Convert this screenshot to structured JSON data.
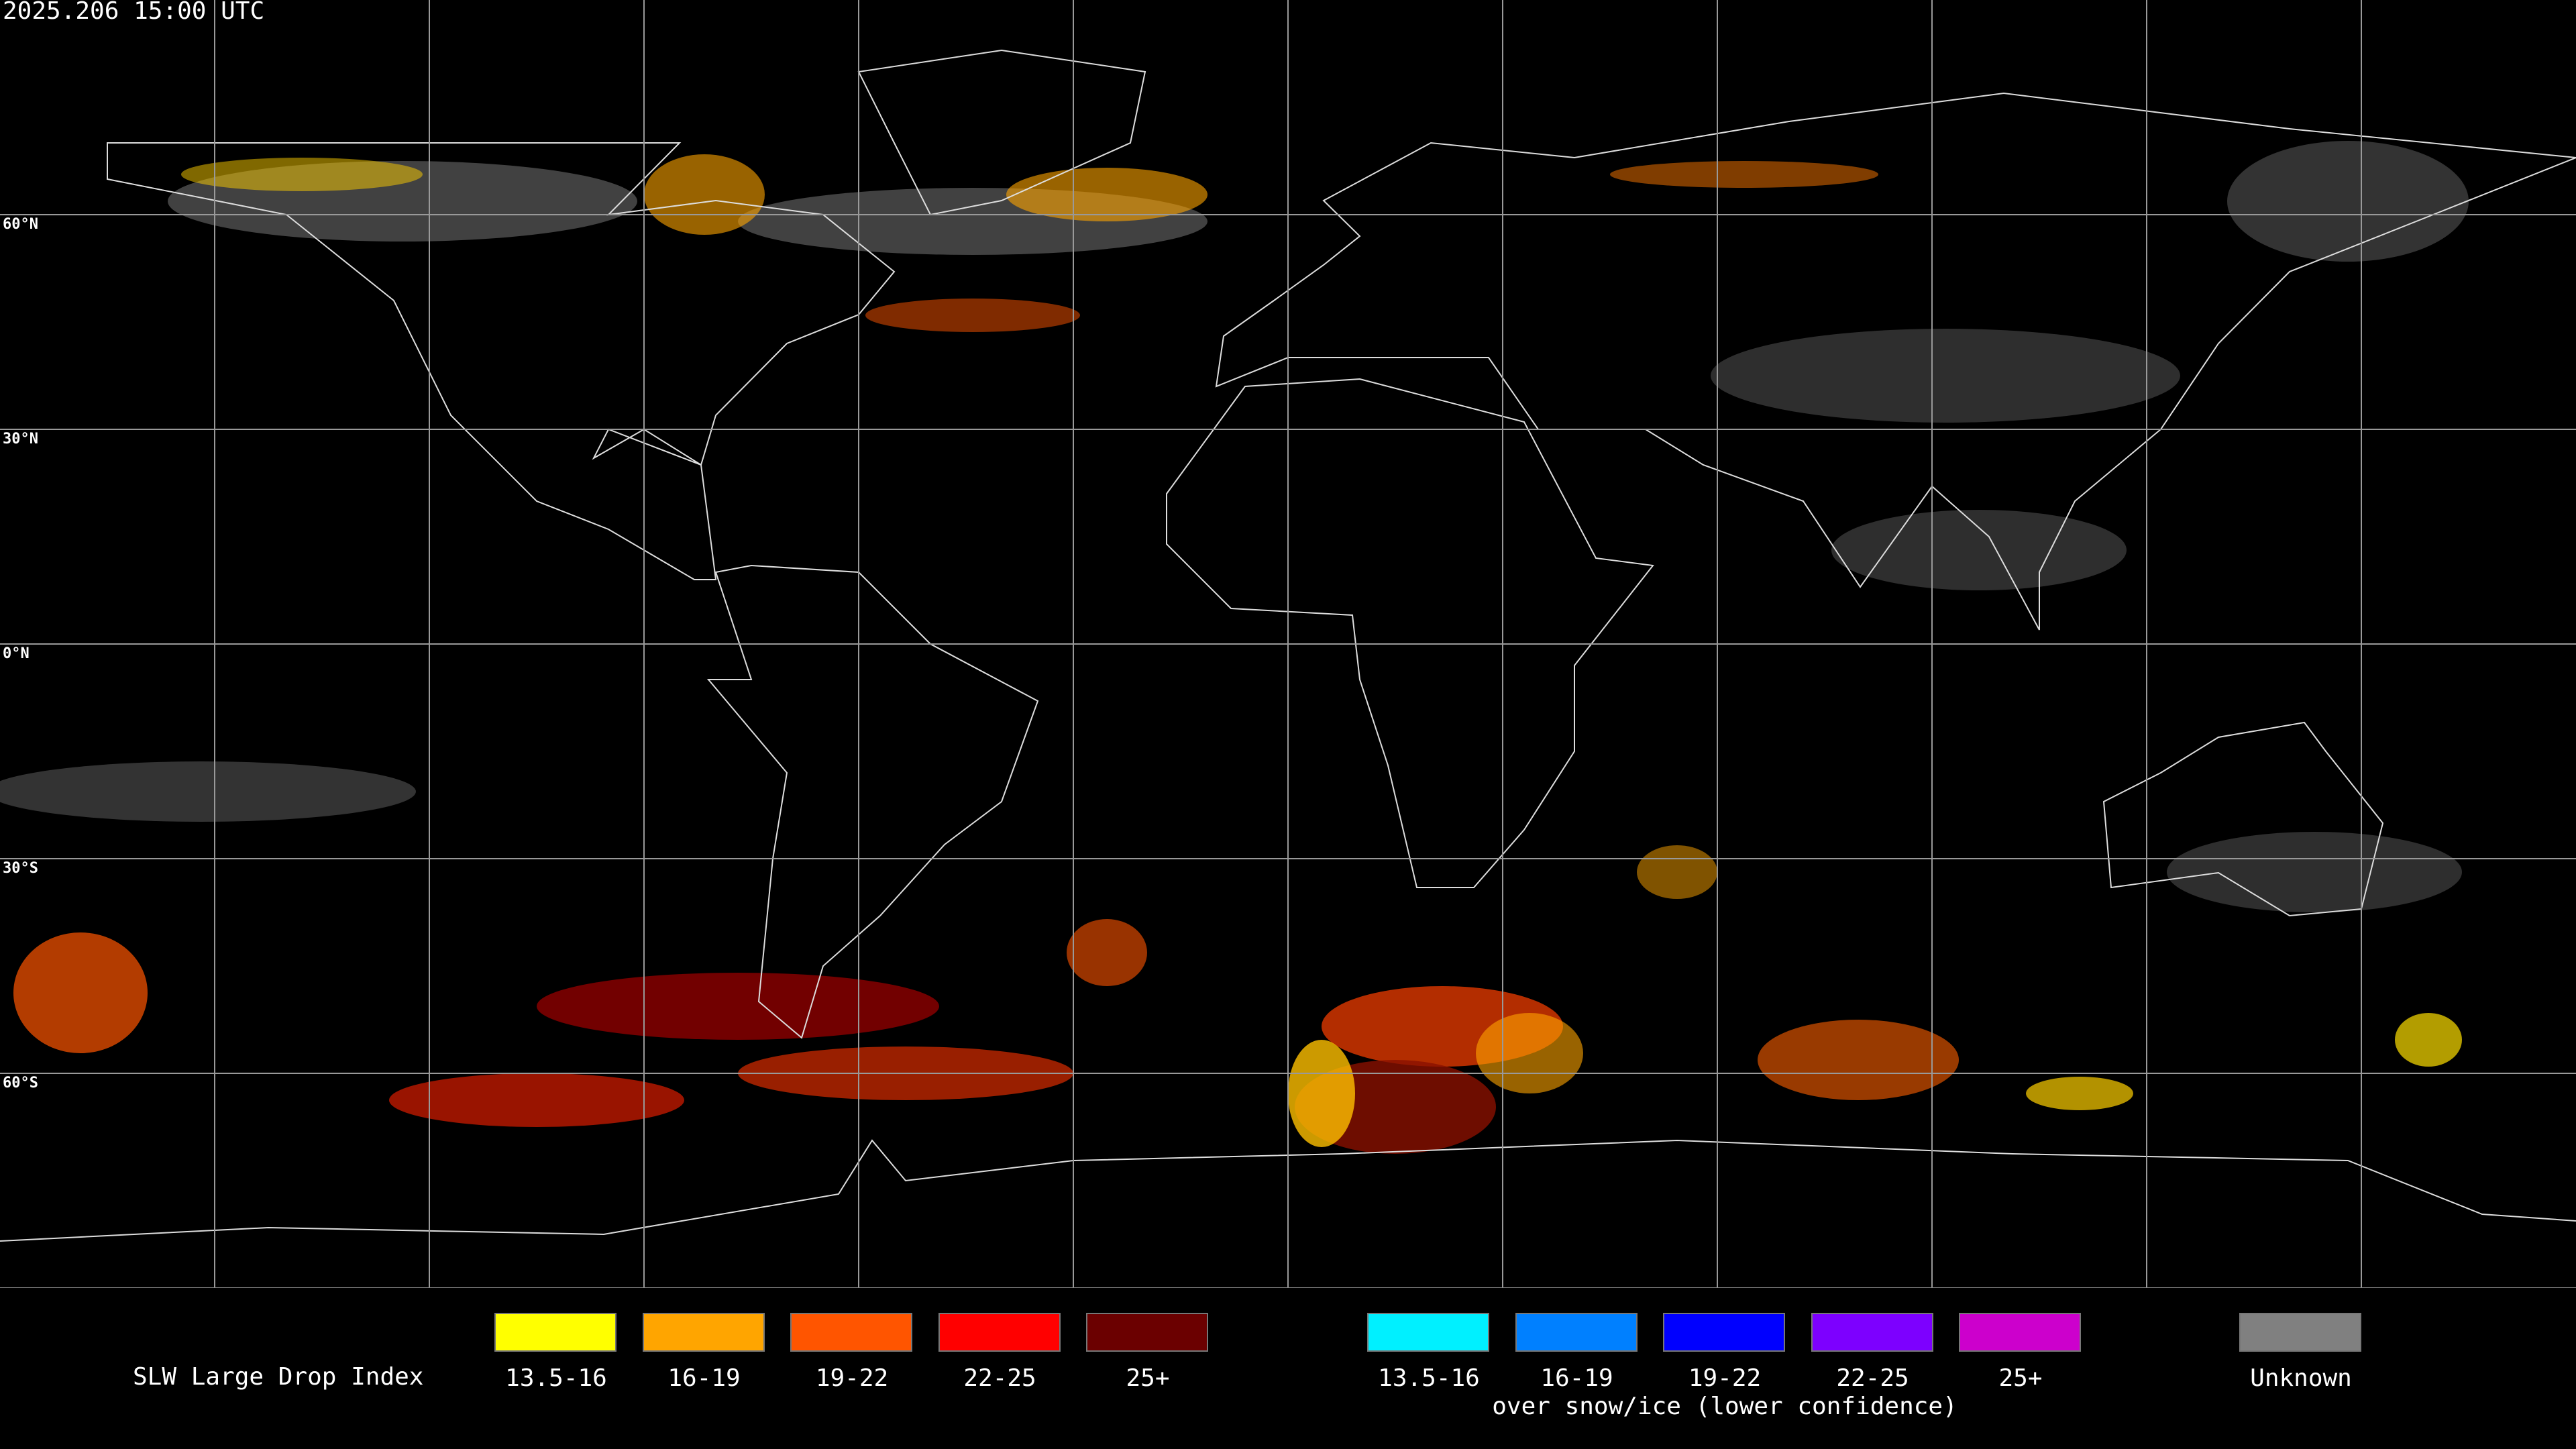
{
  "map": {
    "timestamp": "2025.206 15:00 UTC",
    "latitude_labels": [
      "60°N",
      "30°N",
      "0°N",
      "30°S",
      "60°S"
    ]
  },
  "legend": {
    "title": "SLW Large Drop Index",
    "liquid": [
      {
        "label": "13.5-16",
        "color": "#ffff00"
      },
      {
        "label": "16-19",
        "color": "#ffa500"
      },
      {
        "label": "19-22",
        "color": "#ff5500"
      },
      {
        "label": "22-25",
        "color": "#ff0000"
      },
      {
        "label": "25+",
        "color": "#6b0000"
      }
    ],
    "snow_ice": [
      {
        "label": "13.5-16",
        "color": "#00f0ff"
      },
      {
        "label": "16-19",
        "color": "#0080ff"
      },
      {
        "label": "19-22",
        "color": "#0000ff"
      },
      {
        "label": "22-25",
        "color": "#7d00ff"
      },
      {
        "label": "25+",
        "color": "#cc00cc"
      }
    ],
    "snow_ice_caption": "over snow/ice (lower confidence)",
    "unknown": {
      "label": "Unknown",
      "color": "#808080"
    }
  }
}
